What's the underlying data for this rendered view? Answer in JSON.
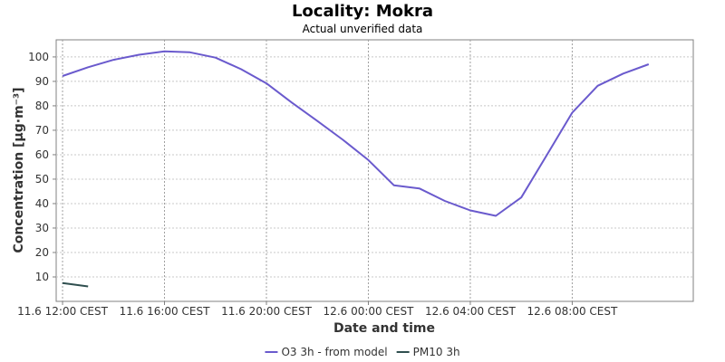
{
  "chart_data": {
    "type": "line",
    "title": "Locality: Mokra",
    "subtitle": "Actual unverified data",
    "xlabel": "Date and time",
    "ylabel": "Concentration [µg·m⁻³]",
    "ylim": [
      0,
      107
    ],
    "yticks": [
      10,
      20,
      30,
      40,
      50,
      60,
      70,
      80,
      90,
      100
    ],
    "xlim": [
      "2025-06-11T11:45",
      "2025-06-12T12:45"
    ],
    "xticks": [
      {
        "t": "2025-06-11T12:00",
        "label": "11.6 12:00 CEST"
      },
      {
        "t": "2025-06-11T16:00",
        "label": "11.6 16:00 CEST"
      },
      {
        "t": "2025-06-11T20:00",
        "label": "11.6 20:00 CEST"
      },
      {
        "t": "2025-06-12T00:00",
        "label": "12.6 00:00 CEST"
      },
      {
        "t": "2025-06-12T04:00",
        "label": "12.6 04:00 CEST"
      },
      {
        "t": "2025-06-12T08:00",
        "label": "12.6 08:00 CEST"
      }
    ],
    "grid": true,
    "legend_position": "bottom",
    "series": [
      {
        "name": "O3 3h - from model",
        "color": "#6a5acd",
        "points": [
          [
            "2025-06-11T12:00",
            92.2
          ],
          [
            "2025-06-11T13:00",
            95.8
          ],
          [
            "2025-06-11T14:00",
            98.8
          ],
          [
            "2025-06-11T15:00",
            100.9
          ],
          [
            "2025-06-11T16:00",
            102.3
          ],
          [
            "2025-06-11T17:00",
            101.9
          ],
          [
            "2025-06-11T18:00",
            99.7
          ],
          [
            "2025-06-11T19:00",
            95.0
          ],
          [
            "2025-06-11T20:00",
            89.2
          ],
          [
            "2025-06-11T21:00",
            81.3
          ],
          [
            "2025-06-11T22:00",
            73.8
          ],
          [
            "2025-06-11T23:00",
            66.1
          ],
          [
            "2025-06-12T00:00",
            57.8
          ],
          [
            "2025-06-12T01:00",
            47.5
          ],
          [
            "2025-06-12T02:00",
            46.2
          ],
          [
            "2025-06-12T03:00",
            41.1
          ],
          [
            "2025-06-12T04:00",
            37.2
          ],
          [
            "2025-06-12T05:00",
            35.0
          ],
          [
            "2025-06-12T06:00",
            42.5
          ],
          [
            "2025-06-12T07:00",
            59.8
          ],
          [
            "2025-06-12T08:00",
            77.2
          ],
          [
            "2025-06-12T09:00",
            88.2
          ],
          [
            "2025-06-12T10:00",
            93.2
          ],
          [
            "2025-06-12T11:00",
            97.0
          ]
        ]
      },
      {
        "name": "PM10 3h",
        "color": "#2f4f4f",
        "points": [
          [
            "2025-06-11T12:00",
            7.5
          ],
          [
            "2025-06-11T13:00",
            6.1
          ]
        ]
      }
    ]
  }
}
